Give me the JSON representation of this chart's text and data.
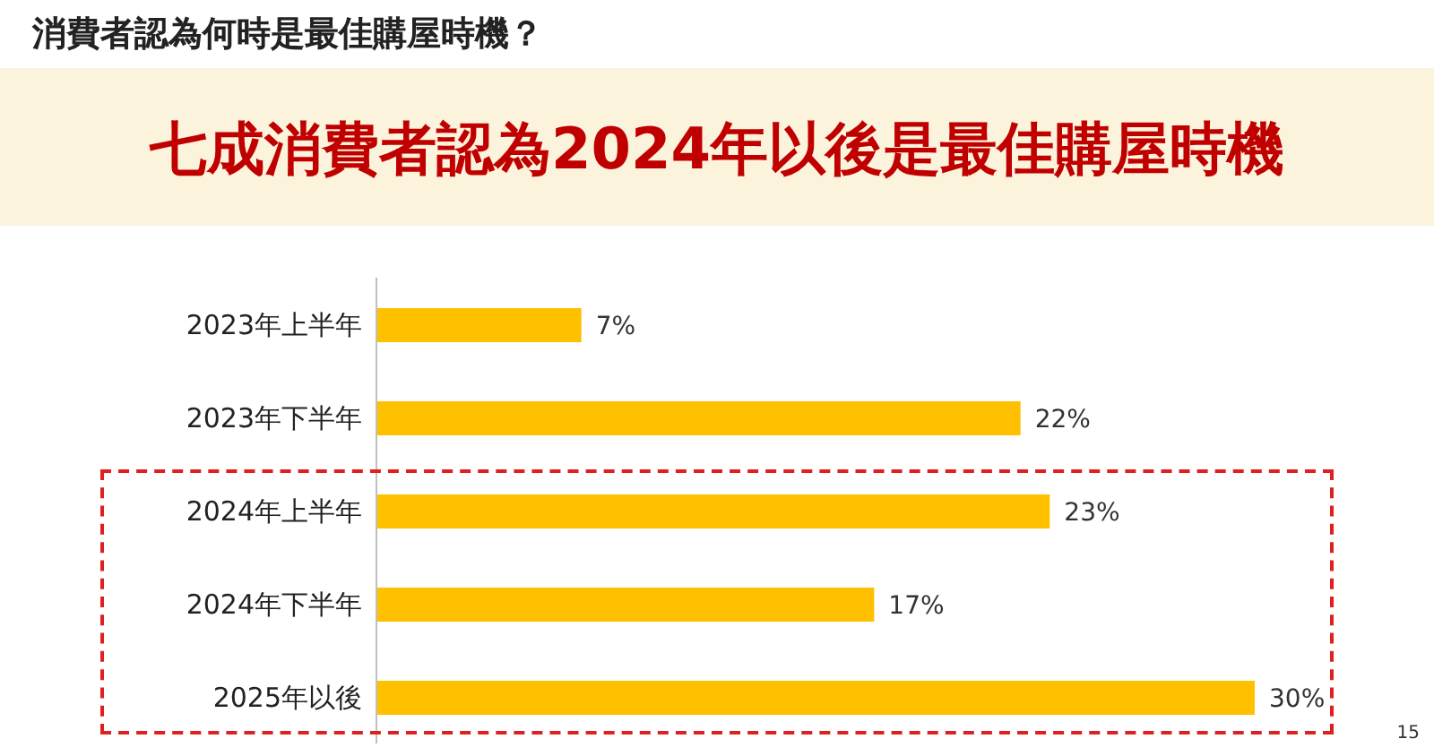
{
  "chart_data": {
    "type": "bar",
    "orientation": "horizontal",
    "title": "消費者認為何時是最佳購屋時機？",
    "subtitle": "七成消費者認為2024年以後是最佳購屋時機",
    "categories": [
      "2023年上半年",
      "2023年下半年",
      "2024年上半年",
      "2024年下半年",
      "2025年以後"
    ],
    "values": [
      7,
      22,
      23,
      17,
      30
    ],
    "color": "#ffc000",
    "value_labels": [
      "7%",
      "22%",
      "23%",
      "17%",
      "30%"
    ],
    "annotations": [
      "15"
    ]
  }
}
